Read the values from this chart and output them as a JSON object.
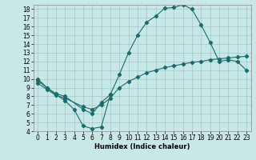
{
  "title": "",
  "xlabel": "Humidex (Indice chaleur)",
  "background_color": "#c8e8e8",
  "grid_color": "#a0c8c8",
  "line_color": "#1a6b6b",
  "xlim": [
    -0.5,
    23.5
  ],
  "ylim": [
    4,
    18.5
  ],
  "xticks": [
    0,
    1,
    2,
    3,
    4,
    5,
    6,
    7,
    8,
    9,
    10,
    11,
    12,
    13,
    14,
    15,
    16,
    17,
    18,
    19,
    20,
    21,
    22,
    23
  ],
  "yticks": [
    4,
    5,
    6,
    7,
    8,
    9,
    10,
    11,
    12,
    13,
    14,
    15,
    16,
    17,
    18
  ],
  "line1_x": [
    0,
    1,
    2,
    3,
    4,
    5,
    6,
    7,
    8
  ],
  "line1_y": [
    10.0,
    9.0,
    8.2,
    7.5,
    6.5,
    4.6,
    4.3,
    4.5,
    8.2
  ],
  "line2_x": [
    0,
    1,
    2,
    3,
    5,
    6,
    7,
    8,
    9,
    10,
    11,
    12,
    13,
    14,
    15,
    16,
    17,
    18,
    19,
    20,
    21,
    22,
    23
  ],
  "line2_y": [
    9.8,
    9.0,
    8.3,
    8.0,
    6.5,
    6.0,
    7.3,
    8.2,
    10.5,
    13.0,
    15.0,
    16.5,
    17.2,
    18.1,
    18.2,
    18.5,
    18.0,
    16.2,
    14.2,
    12.0,
    12.2,
    12.0,
    11.0
  ],
  "line3_x": [
    0,
    1,
    2,
    3,
    5,
    6,
    7,
    8,
    9,
    10,
    11,
    12,
    13,
    14,
    15,
    16,
    17,
    18,
    19,
    20,
    21,
    22,
    23
  ],
  "line3_y": [
    9.5,
    8.8,
    8.1,
    7.8,
    6.8,
    6.5,
    7.0,
    7.8,
    9.0,
    9.7,
    10.2,
    10.7,
    11.0,
    11.3,
    11.5,
    11.7,
    11.9,
    12.0,
    12.2,
    12.3,
    12.4,
    12.5,
    12.6
  ],
  "tick_fontsize": 5.5,
  "xlabel_fontsize": 6,
  "marker_size": 2.2,
  "linewidth": 0.8
}
